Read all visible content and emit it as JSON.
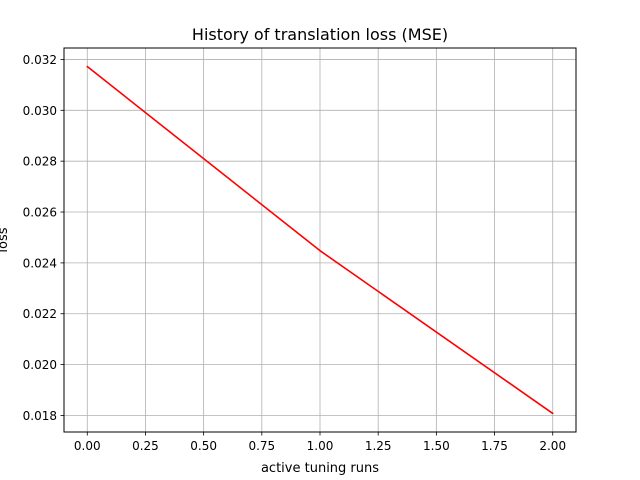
{
  "chart_data": {
    "type": "line",
    "title": "History of translation loss (MSE)",
    "xlabel": "active tuning runs",
    "ylabel": "loss",
    "xlim": [
      -0.1,
      2.1
    ],
    "ylim": [
      0.01735,
      0.03245
    ],
    "xticks": [
      0.0,
      0.25,
      0.5,
      0.75,
      1.0,
      1.25,
      1.5,
      1.75,
      2.0
    ],
    "xtick_labels": [
      "0.00",
      "0.25",
      "0.50",
      "0.75",
      "1.00",
      "1.25",
      "1.50",
      "1.75",
      "2.00"
    ],
    "yticks": [
      0.018,
      0.02,
      0.022,
      0.024,
      0.026,
      0.028,
      0.03,
      0.032
    ],
    "ytick_labels": [
      "0.018",
      "0.020",
      "0.022",
      "0.024",
      "0.026",
      "0.028",
      "0.030",
      "0.032"
    ],
    "grid": true,
    "series": [
      {
        "x": [
          0,
          1,
          2
        ],
        "y": [
          0.03172,
          0.02448,
          0.01808
        ],
        "color": "#ff0000"
      }
    ]
  }
}
